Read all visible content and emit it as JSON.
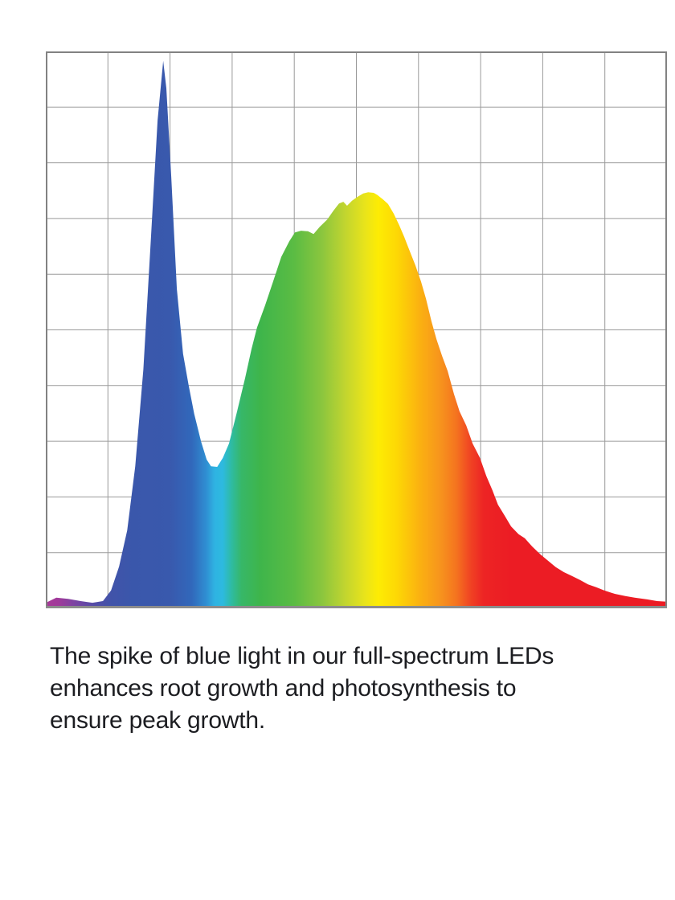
{
  "page": {
    "background": "#ffffff"
  },
  "caption": {
    "text": "The spike of blue light in our full-spectrum LEDs enhances root growth and photosynthesis to ensure peak growth.",
    "lines": [
      "The spike of blue light in our full-spectrum LEDs",
      "enhances root growth and photosynthesis to",
      "ensure peak growth."
    ],
    "color": "#1c1d21"
  },
  "chart_data": {
    "type": "area",
    "title": "",
    "xlabel": "",
    "ylabel": "",
    "axis_tick_labels_visible": false,
    "legend": "none",
    "grid": {
      "visible": true,
      "columns": 10,
      "rows": 10,
      "line_color": "#9a9a9a",
      "border_color": "#828282",
      "baseline_color": "#8c8c8c"
    },
    "x_range_pct": [
      0,
      100
    ],
    "y_range_pct": [
      0,
      100
    ],
    "points": [
      [
        0,
        1.0
      ],
      [
        1.7,
        1.9
      ],
      [
        3.6,
        1.7
      ],
      [
        5.6,
        1.3
      ],
      [
        7.5,
        1.0
      ],
      [
        9.2,
        1.3
      ],
      [
        10.5,
        3.2
      ],
      [
        11.8,
        7.5
      ],
      [
        13.1,
        14.0
      ],
      [
        14.4,
        25.5
      ],
      [
        15.7,
        42.9
      ],
      [
        16.9,
        65.9
      ],
      [
        18.0,
        87.6
      ],
      [
        18.9,
        98.3
      ],
      [
        19.4,
        93.4
      ],
      [
        20.2,
        77.5
      ],
      [
        21.1,
        57.3
      ],
      [
        22.1,
        45.7
      ],
      [
        23.0,
        40.0
      ],
      [
        23.9,
        34.9
      ],
      [
        25.0,
        29.9
      ],
      [
        25.9,
        26.7
      ],
      [
        26.6,
        25.5
      ],
      [
        27.6,
        25.4
      ],
      [
        28.5,
        27.0
      ],
      [
        29.5,
        29.6
      ],
      [
        30.8,
        35.4
      ],
      [
        32.1,
        41.4
      ],
      [
        33.1,
        46.5
      ],
      [
        34.0,
        50.4
      ],
      [
        35.3,
        54.4
      ],
      [
        36.6,
        58.7
      ],
      [
        37.9,
        63.1
      ],
      [
        39.2,
        65.9
      ],
      [
        40.1,
        67.5
      ],
      [
        41.1,
        67.8
      ],
      [
        42.2,
        67.7
      ],
      [
        43.1,
        67.2
      ],
      [
        44.1,
        68.5
      ],
      [
        45.3,
        69.8
      ],
      [
        46.3,
        71.4
      ],
      [
        47.2,
        72.7
      ],
      [
        47.9,
        73.0
      ],
      [
        48.5,
        72.3
      ],
      [
        49.3,
        73.2
      ],
      [
        50.2,
        73.9
      ],
      [
        51.1,
        74.5
      ],
      [
        51.9,
        74.7
      ],
      [
        52.8,
        74.6
      ],
      [
        53.4,
        74.2
      ],
      [
        54.3,
        73.4
      ],
      [
        55.1,
        72.6
      ],
      [
        56.0,
        70.9
      ],
      [
        56.9,
        68.8
      ],
      [
        57.7,
        66.7
      ],
      [
        58.6,
        64.1
      ],
      [
        59.5,
        61.6
      ],
      [
        60.4,
        58.7
      ],
      [
        61.2,
        55.6
      ],
      [
        62.1,
        51.5
      ],
      [
        62.9,
        48.3
      ],
      [
        63.8,
        45.3
      ],
      [
        64.7,
        42.6
      ],
      [
        65.7,
        38.5
      ],
      [
        66.6,
        35.4
      ],
      [
        67.7,
        32.8
      ],
      [
        68.7,
        29.6
      ],
      [
        69.9,
        27.0
      ],
      [
        70.9,
        23.8
      ],
      [
        71.9,
        21.2
      ],
      [
        72.8,
        18.6
      ],
      [
        73.9,
        16.6
      ],
      [
        74.9,
        14.7
      ],
      [
        76.1,
        13.3
      ],
      [
        77.1,
        12.6
      ],
      [
        78.3,
        11.1
      ],
      [
        79.6,
        9.7
      ],
      [
        80.9,
        8.5
      ],
      [
        82.1,
        7.4
      ],
      [
        83.4,
        6.5
      ],
      [
        84.7,
        5.8
      ],
      [
        86.0,
        5.1
      ],
      [
        87.3,
        4.3
      ],
      [
        88.6,
        3.8
      ],
      [
        89.9,
        3.2
      ],
      [
        91.6,
        2.6
      ],
      [
        93.3,
        2.2
      ],
      [
        94.8,
        1.9
      ],
      [
        96.8,
        1.6
      ],
      [
        98.4,
        1.3
      ],
      [
        100,
        1.2
      ]
    ],
    "peaks": [
      {
        "name": "blue-spike",
        "x_pct": 18.9,
        "intensity_pct": 98.3
      },
      {
        "name": "valley",
        "x_pct": 27.1,
        "intensity_pct": 25.4
      },
      {
        "name": "broad-peak",
        "x_pct": 51.9,
        "intensity_pct": 74.7
      }
    ],
    "gradient_stops": [
      {
        "offset": 0.0,
        "color": "#a83a98"
      },
      {
        "offset": 0.02,
        "color": "#a03a9a"
      },
      {
        "offset": 0.045,
        "color": "#7d43a2"
      },
      {
        "offset": 0.075,
        "color": "#564ba6"
      },
      {
        "offset": 0.105,
        "color": "#4153a9"
      },
      {
        "offset": 0.14,
        "color": "#3a57ab"
      },
      {
        "offset": 0.2,
        "color": "#3959ad"
      },
      {
        "offset": 0.235,
        "color": "#3168bb"
      },
      {
        "offset": 0.258,
        "color": "#2f8ed2"
      },
      {
        "offset": 0.272,
        "color": "#2fb3e2"
      },
      {
        "offset": 0.285,
        "color": "#2dbadf"
      },
      {
        "offset": 0.3,
        "color": "#2fbb9e"
      },
      {
        "offset": 0.315,
        "color": "#37b768"
      },
      {
        "offset": 0.345,
        "color": "#3eb54b"
      },
      {
        "offset": 0.4,
        "color": "#5bbc43"
      },
      {
        "offset": 0.445,
        "color": "#8bc63e"
      },
      {
        "offset": 0.48,
        "color": "#bfd430"
      },
      {
        "offset": 0.515,
        "color": "#eae41a"
      },
      {
        "offset": 0.535,
        "color": "#fdec04"
      },
      {
        "offset": 0.565,
        "color": "#fdd805"
      },
      {
        "offset": 0.6,
        "color": "#fbb310"
      },
      {
        "offset": 0.635,
        "color": "#f7941d"
      },
      {
        "offset": 0.66,
        "color": "#f5751f"
      },
      {
        "offset": 0.685,
        "color": "#f04123"
      },
      {
        "offset": 0.705,
        "color": "#ed2424"
      },
      {
        "offset": 0.75,
        "color": "#ec1c24"
      },
      {
        "offset": 1.0,
        "color": "#ec1c24"
      }
    ]
  }
}
